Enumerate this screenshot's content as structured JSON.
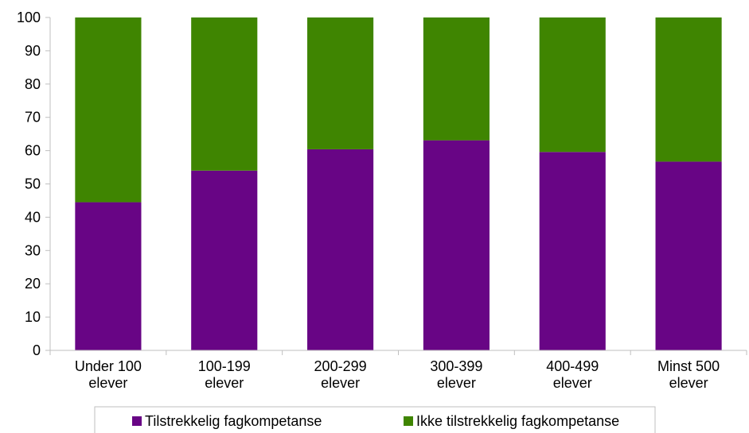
{
  "chart_data": {
    "type": "bar",
    "stacked": true,
    "categories": [
      [
        "Under 100",
        "elever"
      ],
      [
        "100-199",
        "elever"
      ],
      [
        "200-299",
        "elever"
      ],
      [
        "300-399",
        "elever"
      ],
      [
        "400-499",
        "elever"
      ],
      [
        "Minst 500",
        "elever"
      ]
    ],
    "series": [
      {
        "name": "Tilstrekkelig fagkompetanse",
        "color": "#680585",
        "values": [
          44.5,
          54,
          60.4,
          63.1,
          59.6,
          56.7
        ]
      },
      {
        "name": "Ikke tilstrekkelig fagkompetanse",
        "color": "#3f8501",
        "values": [
          55.5,
          46,
          39.6,
          36.9,
          40.4,
          43.3
        ]
      }
    ],
    "title": "",
    "xlabel": "",
    "ylabel": "",
    "ylim": [
      0,
      100
    ],
    "yticks": [
      0,
      10,
      20,
      30,
      40,
      50,
      60,
      70,
      80,
      90,
      100
    ],
    "grid": false,
    "legend_position": "bottom"
  }
}
